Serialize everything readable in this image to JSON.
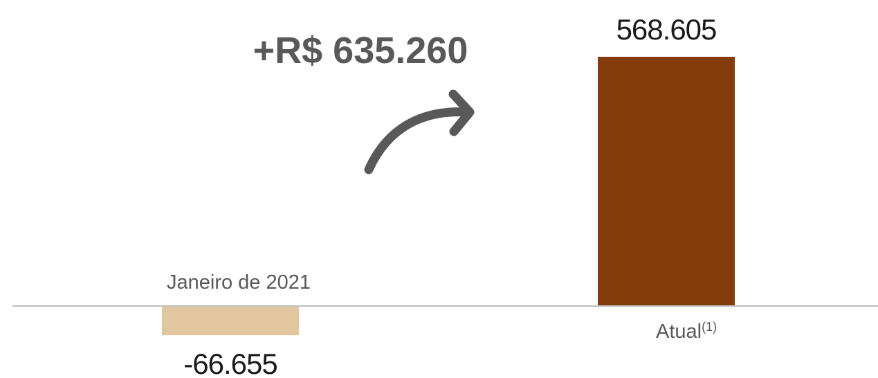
{
  "chart_data": {
    "type": "bar",
    "categories": [
      "Janeiro de 2021",
      "Atual"
    ],
    "category_superscripts": [
      "",
      "(1)"
    ],
    "values": [
      -66655,
      568605
    ],
    "value_labels": [
      "-66.655",
      "568.605"
    ],
    "colors": [
      "#E2C69F",
      "#843C0C"
    ],
    "annotation": "+R$ 635.260",
    "ylim": [
      -66655,
      568605
    ],
    "grid": false,
    "legend": "none"
  },
  "colors": {
    "axis": "#BFBFBF",
    "arrow": "#595959",
    "text": "#595959"
  },
  "icons": {
    "arrow": "curved-up-right-arrow-icon"
  }
}
